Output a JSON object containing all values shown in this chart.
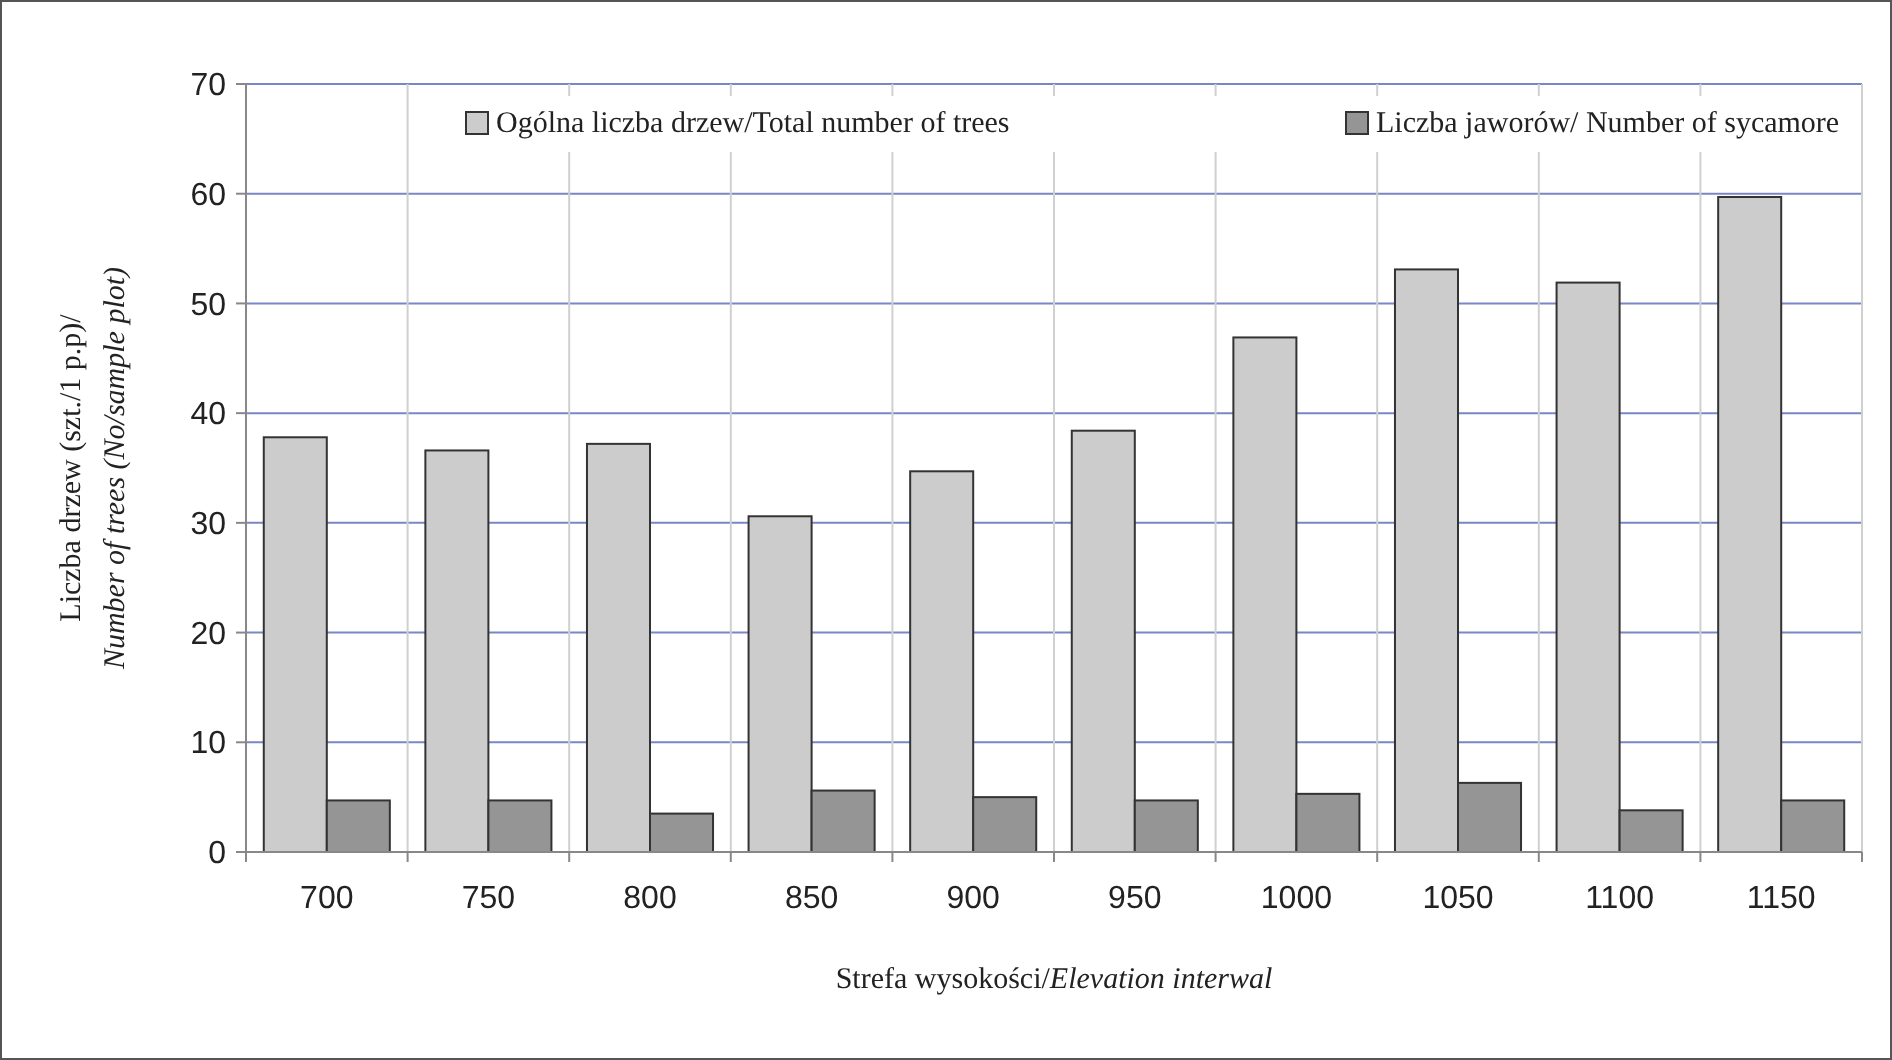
{
  "chart_data": {
    "type": "bar",
    "xlabel": "Strefa wysokości/Elevation interwal",
    "ylabel": "Liczba drzew (szt./1 p.p)/\nNumber of trees (No/sample plot)",
    "categories": [
      "700",
      "750",
      "800",
      "850",
      "900",
      "950",
      "1000",
      "1050",
      "1100",
      "1150"
    ],
    "series": [
      {
        "name": "Ogólna liczba drzew/Total number of trees",
        "color": "#cccccc",
        "values": [
          37.8,
          36.6,
          37.2,
          30.6,
          34.7,
          38.4,
          46.9,
          53.1,
          51.9,
          59.7
        ]
      },
      {
        "name": "Liczba jaworów/ Number of sycamore",
        "color": "#959595",
        "values": [
          4.7,
          4.7,
          3.5,
          5.6,
          5.0,
          4.7,
          5.3,
          6.3,
          3.8,
          4.7
        ]
      }
    ],
    "ylim": [
      0,
      70
    ],
    "yticks": [
      0,
      10,
      20,
      30,
      40,
      50,
      60,
      70
    ],
    "grid": true,
    "legend": "top"
  }
}
